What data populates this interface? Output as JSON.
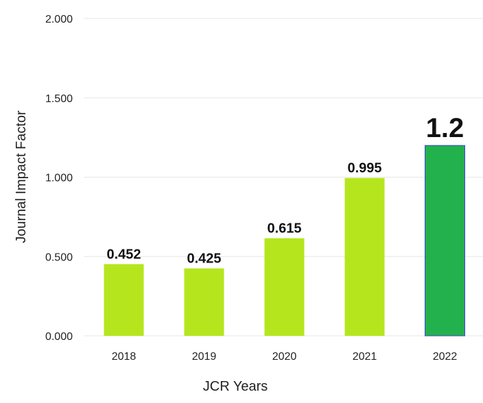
{
  "chart_data": {
    "type": "bar",
    "title": "",
    "xlabel": "JCR Years",
    "ylabel": "Journal Impact Factor",
    "categories": [
      "2018",
      "2019",
      "2020",
      "2021",
      "2022"
    ],
    "values": [
      0.452,
      0.425,
      0.615,
      0.995,
      1.2
    ],
    "data_labels": [
      "0.452",
      "0.425",
      "0.615",
      "0.995",
      "1.2"
    ],
    "y_ticks": [
      0,
      0.5,
      1.0,
      1.5,
      2.0
    ],
    "y_tick_labels": [
      "0.000",
      "0.500",
      "1.000",
      "1.500",
      "2.000"
    ],
    "ylim": [
      0,
      2.0
    ],
    "grid": true,
    "legend": "none",
    "highlight_index": 4,
    "colors": {
      "bar": "#b5e61d",
      "bar_highlight": "#22b14c",
      "bar_highlight_border": "#3f48cc",
      "grid": "#e6e6e6",
      "text": "#222222"
    }
  }
}
